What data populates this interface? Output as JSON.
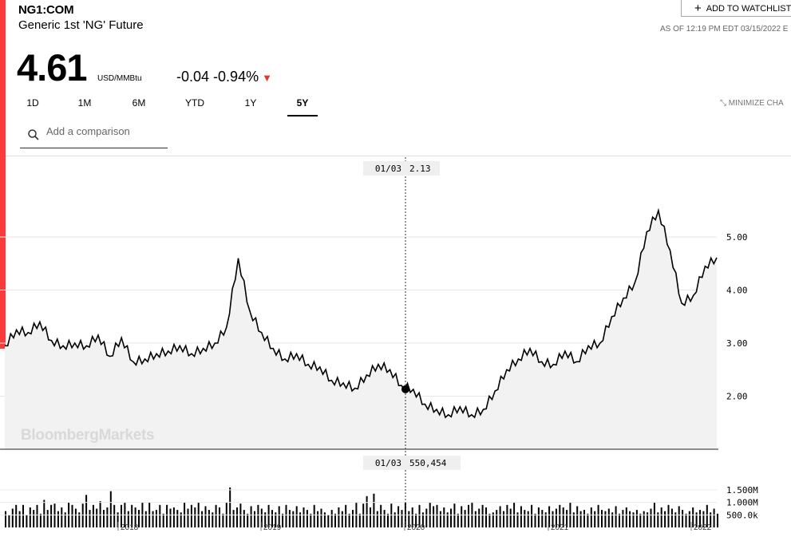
{
  "header": {
    "ticker": "NG1:COM",
    "name": "Generic 1st 'NG' Future",
    "price": "4.61",
    "unit": "USD/MMBtu",
    "change": "-0.04",
    "change_pct": "-0.94%",
    "watchlist_label": "ADD TO WATCHLIST",
    "as_of": "AS OF 12:19 PM EDT 03/15/2022 E"
  },
  "tabs": [
    {
      "label": "1D"
    },
    {
      "label": "1M"
    },
    {
      "label": "6M"
    },
    {
      "label": "YTD"
    },
    {
      "label": "1Y"
    },
    {
      "label": "5Y",
      "active": true
    }
  ],
  "minimize_label": "MINIMIZE CHA",
  "comparison": {
    "placeholder": "Add a comparison"
  },
  "watermark": "BloombergMarkets",
  "colors": {
    "accent": "#fb3b3b",
    "down": "#e8332d",
    "line": "#000000",
    "area": "#f2f2f2"
  },
  "chart_data": [
    {
      "type": "area",
      "title": "",
      "crosshair": {
        "date": "01/03",
        "value": "2.13"
      },
      "y_ticks": [
        "5.00",
        "4.00",
        "3.00",
        "2.00"
      ],
      "ylim": [
        1.5,
        5.75
      ],
      "x_labels": [
        "2018",
        "2019",
        "2020",
        "2021",
        "2022"
      ],
      "grid": true,
      "x": [
        "2017-03",
        "2017-04",
        "2017-05",
        "2017-06",
        "2017-07",
        "2017-08",
        "2017-09",
        "2017-10",
        "2017-11",
        "2017-12",
        "2018-01",
        "2018-02",
        "2018-03",
        "2018-04",
        "2018-05",
        "2018-06",
        "2018-07",
        "2018-08",
        "2018-09",
        "2018-10",
        "2018-11",
        "2018-11b",
        "2018-12",
        "2019-01",
        "2019-02",
        "2019-03",
        "2019-04",
        "2019-05",
        "2019-06",
        "2019-07",
        "2019-08",
        "2019-09",
        "2019-10",
        "2019-11",
        "2019-12",
        "2020-01",
        "2020-02",
        "2020-03",
        "2020-04",
        "2020-05",
        "2020-06",
        "2020-07",
        "2020-08",
        "2020-09",
        "2020-10",
        "2020-11",
        "2020-12",
        "2021-01",
        "2021-02",
        "2021-03",
        "2021-04",
        "2021-05",
        "2021-06",
        "2021-07",
        "2021-08",
        "2021-09",
        "2021-10",
        "2021-11",
        "2021-12",
        "2022-01",
        "2022-02",
        "2022-03"
      ],
      "values": [
        2.95,
        3.25,
        3.2,
        3.4,
        3.05,
        2.95,
        3.0,
        2.95,
        3.15,
        2.75,
        3.1,
        2.65,
        2.7,
        2.8,
        2.85,
        2.95,
        2.8,
        2.9,
        3.0,
        3.3,
        4.6,
        3.6,
        3.2,
        2.9,
        2.7,
        2.8,
        2.6,
        2.55,
        2.3,
        2.25,
        2.15,
        2.4,
        2.6,
        2.5,
        2.2,
        2.13,
        1.85,
        1.75,
        1.65,
        1.8,
        1.65,
        1.75,
        2.1,
        2.5,
        2.7,
        2.9,
        2.65,
        2.6,
        2.85,
        2.65,
        2.95,
        3.0,
        3.5,
        3.85,
        4.15,
        5.1,
        5.5,
        4.75,
        3.75,
        3.9,
        4.45,
        4.61
      ]
    },
    {
      "type": "bar",
      "title": "Volume",
      "crosshair": {
        "date": "01/03",
        "value": "550,454"
      },
      "y_ticks": [
        "1.500M",
        "1.000M",
        "500.0k"
      ],
      "ylim": [
        0,
        1700000
      ],
      "values_thousands": [
        650,
        500,
        750,
        900,
        650,
        900,
        500,
        800,
        700,
        900,
        550,
        1100,
        700,
        900,
        950,
        650,
        800,
        600,
        1000,
        900,
        750,
        600,
        950,
        1300,
        700,
        900,
        750,
        1050,
        700,
        800,
        1450,
        900,
        600,
        900,
        1000,
        650,
        900,
        800,
        700,
        1000,
        650,
        1000,
        650,
        700,
        900,
        550,
        900,
        750,
        800,
        700,
        600,
        1000,
        750,
        900,
        800,
        1000,
        650,
        850,
        700,
        600,
        900,
        800,
        550,
        1000,
        1600,
        700,
        800,
        950,
        700,
        550,
        850,
        650,
        900,
        750,
        600,
        900,
        700,
        600,
        850,
        550,
        900,
        700,
        650,
        850,
        600,
        800,
        700,
        550,
        900,
        650,
        750,
        600,
        500,
        700,
        550,
        800,
        650,
        900,
        550,
        700,
        1000,
        550,
        950,
        1250,
        800,
        1350,
        650,
        900,
        700,
        550,
        950,
        600,
        850,
        700,
        1000,
        650,
        800,
        550,
        900,
        600,
        750,
        1000,
        850,
        900,
        650,
        800,
        600,
        750,
        950,
        550,
        850,
        700,
        900,
        1000,
        650,
        750,
        900,
        800,
        550,
        600,
        700,
        850,
        650,
        900,
        750,
        1000,
        600,
        850,
        700,
        650,
        900,
        550,
        800,
        700,
        600,
        850,
        650,
        750,
        900,
        800,
        700,
        1000,
        600,
        850,
        650,
        700,
        550,
        800,
        650,
        900,
        700,
        650,
        750,
        600,
        850,
        550,
        700,
        800,
        650,
        600,
        700,
        550,
        650,
        600,
        750,
        1000,
        600,
        800,
        650,
        900,
        750,
        600,
        850,
        700,
        550,
        650,
        800,
        600,
        700,
        650,
        900,
        600,
        750,
        550
      ]
    }
  ]
}
